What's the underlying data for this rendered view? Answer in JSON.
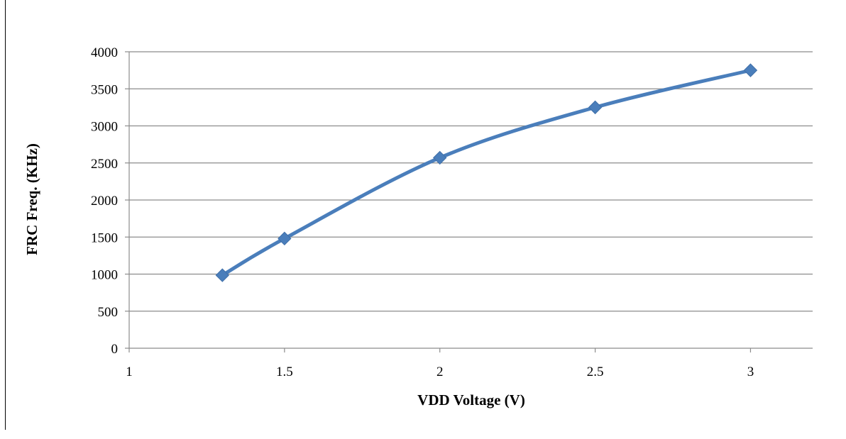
{
  "chart_data": {
    "type": "line",
    "xlabel": "VDD Voltage (V)",
    "ylabel": "FRC Freq. (KHz)",
    "xlim": [
      1,
      3.2
    ],
    "ylim": [
      0,
      4000
    ],
    "xticks": [
      1,
      1.5,
      2,
      2.5,
      3
    ],
    "yticks": [
      0,
      500,
      1000,
      1500,
      2000,
      2500,
      3000,
      3500,
      4000
    ],
    "grid": "horizontal",
    "smooth": true,
    "marker": "diamond",
    "series": [
      {
        "color": "#4A7EBB",
        "x": [
          1.3,
          1.5,
          2,
          2.5,
          3
        ],
        "y": [
          985,
          1480,
          2570,
          3250,
          3750
        ]
      }
    ]
  }
}
